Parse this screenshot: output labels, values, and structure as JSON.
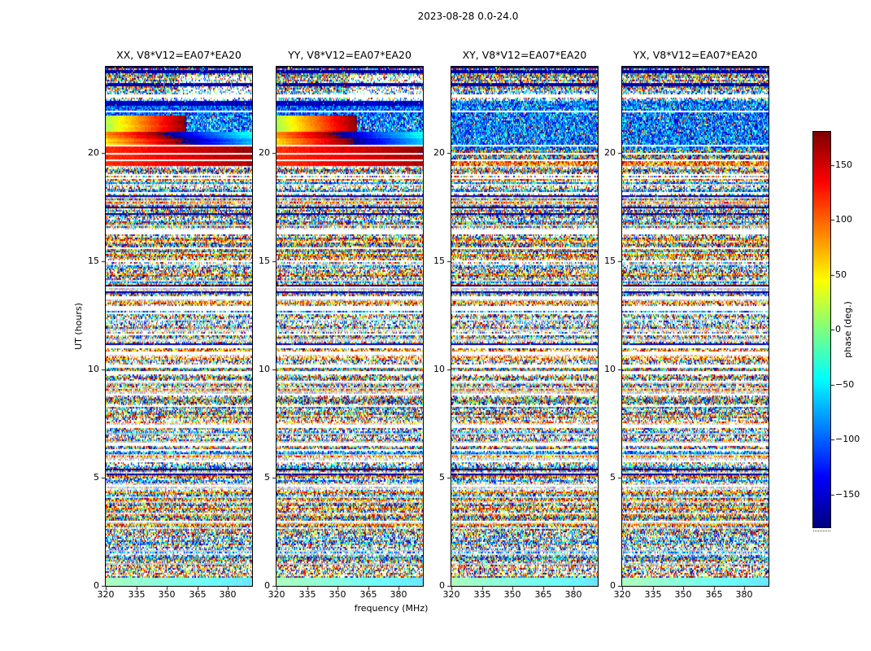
{
  "figure_title": "2023-08-28 0.0-24.0",
  "chart_data": {
    "type": "heatmap",
    "title": "2023-08-28 0.0-24.0",
    "panels": [
      {
        "pol": "XX",
        "title": "XX, V8*V12=EA07*EA20",
        "coherent_band": true
      },
      {
        "pol": "YY",
        "title": "YY, V8*V12=EA07*EA20",
        "coherent_band": true
      },
      {
        "pol": "XY",
        "title": "XY, V8*V12=EA07*EA20",
        "coherent_band": false
      },
      {
        "pol": "YX",
        "title": "YX, V8*V12=EA07*EA20",
        "coherent_band": false
      }
    ],
    "xlabel": "frequency (MHz)",
    "ylabel": "UT (hours)",
    "xlim": [
      320,
      392
    ],
    "ylim": [
      0,
      24
    ],
    "xticks": [
      320,
      335,
      350,
      365,
      380
    ],
    "yticks": [
      0,
      5,
      10,
      15,
      20
    ],
    "colorbar": {
      "label": "phase (deg.)",
      "ticks": [
        150,
        100,
        50,
        0,
        -50,
        -100,
        -150
      ],
      "tick_labels": [
        "150",
        "100",
        "50",
        "0",
        "−50",
        "−100",
        "−150"
      ],
      "vmin": -180,
      "vmax": 180,
      "colormap": "jet"
    },
    "features": {
      "coherent_band_ut": [
        19.4,
        22.45
      ],
      "top_dark_ut": [
        23.55,
        24.0
      ],
      "bottom_smooth_ut": [
        0.0,
        0.35
      ],
      "content_note": "noise-like visibility phases with flagged white time rows; smooth coherent phase band near UT 19.4-22.4 visible in XX and YY only; dark flagged rows at top"
    },
    "noise_seed": 20230828
  }
}
